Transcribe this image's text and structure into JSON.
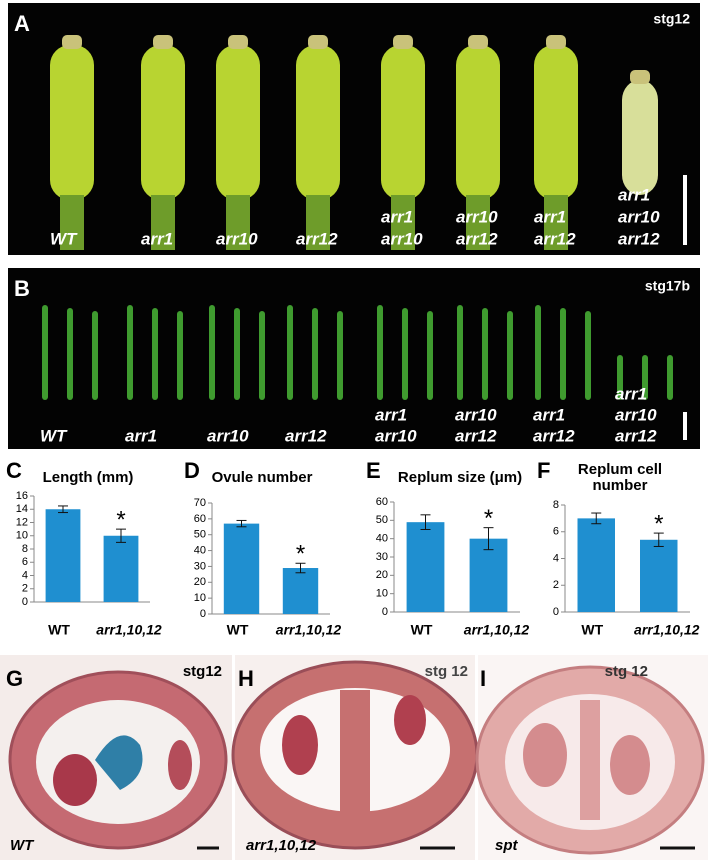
{
  "panels": {
    "A": {
      "letter": "A",
      "stage": "stg12",
      "labels": [
        [
          "WT"
        ],
        [
          "arr1"
        ],
        [
          "arr10"
        ],
        [
          "arr12"
        ],
        [
          "arr1",
          "arr10"
        ],
        [
          "arr10",
          "arr12"
        ],
        [
          "arr1",
          "arr12"
        ],
        [
          "arr1",
          "arr10",
          "arr12"
        ]
      ]
    },
    "B": {
      "letter": "B",
      "stage": "stg17b",
      "labels": [
        [
          "WT"
        ],
        [
          "arr1"
        ],
        [
          "arr10"
        ],
        [
          "arr12"
        ],
        [
          "arr1",
          "arr10"
        ],
        [
          "arr10",
          "arr12"
        ],
        [
          "arr1",
          "arr12"
        ],
        [
          "arr1",
          "arr10",
          "arr12"
        ]
      ]
    },
    "G": {
      "letter": "G",
      "stage": "stg12",
      "label": "WT"
    },
    "H": {
      "letter": "H",
      "stage": "stg 12",
      "label": "arr1,10,12"
    },
    "I": {
      "letter": "I",
      "stage": "stg 12",
      "label": "spt"
    }
  },
  "chart_data": [
    {
      "type": "bar",
      "letter": "C",
      "title": "Length (mm)",
      "categories": [
        "WT",
        "arr1,10,12"
      ],
      "values": [
        14,
        10
      ],
      "errors": [
        0.5,
        1.0
      ],
      "annotation": "*",
      "color": "#1f8fd0",
      "ylim": [
        0,
        16
      ],
      "yticks": [
        0,
        2,
        4,
        6,
        8,
        10,
        12,
        14,
        16
      ]
    },
    {
      "type": "bar",
      "letter": "D",
      "title": "Ovule number",
      "categories": [
        "WT",
        "arr1,10,12"
      ],
      "values": [
        57,
        29
      ],
      "errors": [
        2,
        3
      ],
      "annotation": "*",
      "color": "#1f8fd0",
      "ylim": [
        0,
        70
      ],
      "yticks": [
        0,
        10,
        20,
        30,
        40,
        50,
        60,
        70
      ]
    },
    {
      "type": "bar",
      "letter": "E",
      "title": "Replum size (μm)",
      "categories": [
        "WT",
        "arr1,10,12"
      ],
      "values": [
        49,
        40
      ],
      "errors": [
        4,
        6
      ],
      "annotation": "*",
      "color": "#1f8fd0",
      "ylim": [
        0,
        60
      ],
      "yticks": [
        0,
        10,
        20,
        30,
        40,
        50,
        60
      ]
    },
    {
      "type": "bar",
      "letter": "F",
      "title": [
        "Replum cell",
        "number"
      ],
      "categories": [
        "WT",
        "arr1,10,12"
      ],
      "values": [
        7,
        5.4
      ],
      "errors": [
        0.4,
        0.5
      ],
      "annotation": "*",
      "color": "#1f8fd0",
      "ylim": [
        0,
        8
      ],
      "yticks": [
        0,
        2,
        4,
        6,
        8
      ]
    }
  ]
}
